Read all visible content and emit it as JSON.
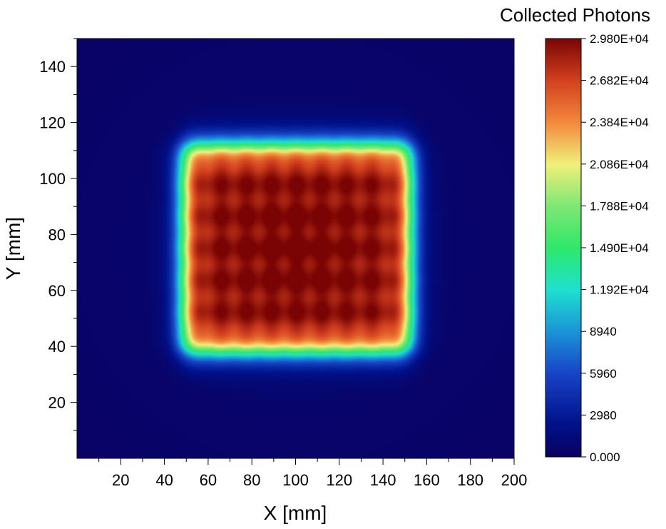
{
  "chart_data": {
    "type": "heatmap",
    "title": "",
    "xlabel": "X [mm]",
    "ylabel": "Y [mm]",
    "xlim": [
      0,
      200
    ],
    "ylim": [
      0,
      150
    ],
    "x_ticks": [
      "20",
      "40",
      "60",
      "80",
      "100",
      "120",
      "140",
      "160",
      "180",
      "200"
    ],
    "y_ticks": [
      "20",
      "40",
      "60",
      "80",
      "100",
      "120",
      "140"
    ],
    "colorbar": {
      "title": "Collected Photons",
      "range": [
        0,
        29800
      ],
      "colormap": "turbo",
      "tick_labels": [
        "2.980E+04",
        "2.682E+04",
        "2.384E+04",
        "2.086E+04",
        "1.788E+04",
        "1.490E+04",
        "1.192E+04",
        "8940",
        "5960",
        "2980",
        "0.000"
      ]
    },
    "field": {
      "background": 0,
      "plateau_x_range": [
        48,
        153
      ],
      "plateau_y_range": [
        38,
        112
      ],
      "plateau_level": 27000,
      "plateau_peak": 29800,
      "edge_falloff_mm": 8,
      "ripple_period_mm": 11.5
    }
  }
}
